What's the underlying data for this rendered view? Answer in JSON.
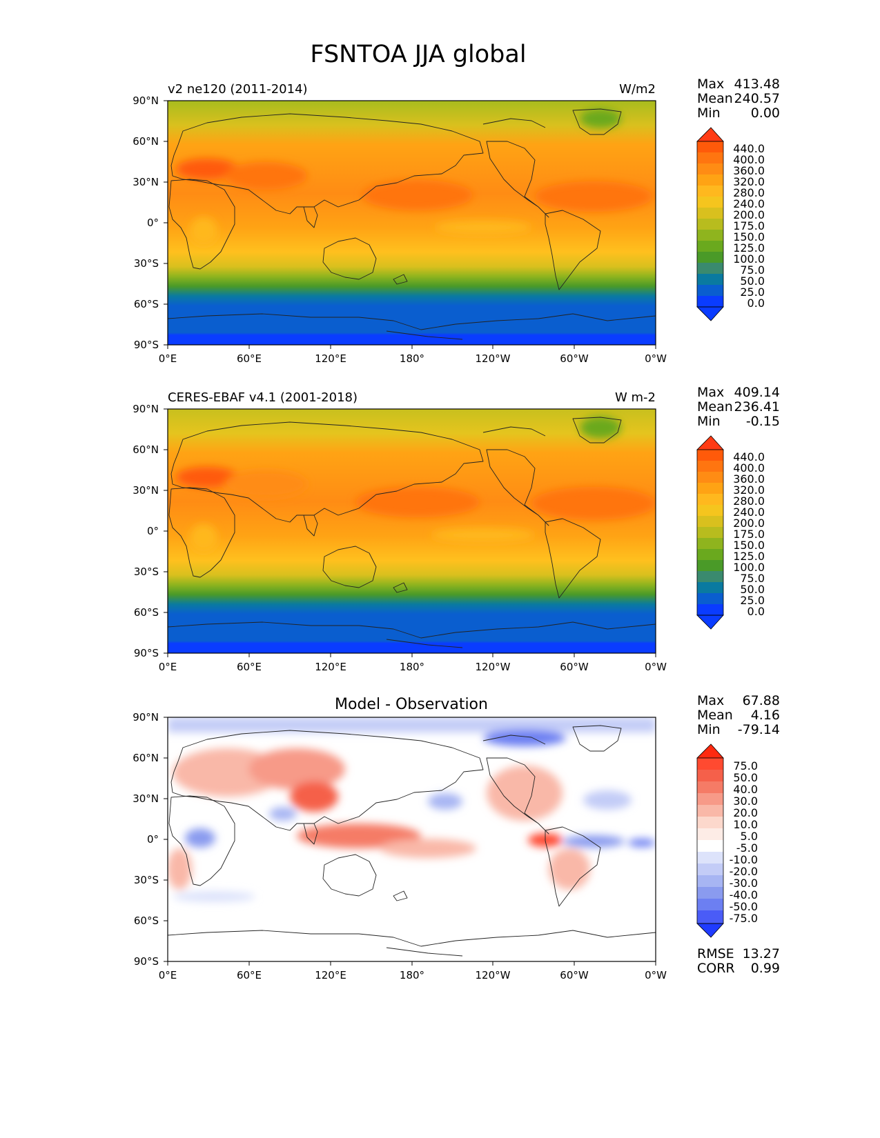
{
  "title": "FSNTOA JJA global",
  "lat_ticks": [
    "90°N",
    "60°N",
    "30°N",
    "0°",
    "30°S",
    "60°S",
    "90°S"
  ],
  "lon_ticks": [
    "0°E",
    "60°E",
    "120°E",
    "180°",
    "120°W",
    "60°W",
    "0°W"
  ],
  "panels": [
    {
      "left_title": "v2 ne120 (2011-2014)",
      "right_title": "W/m2",
      "center_title": "",
      "stats": [
        [
          "Max",
          "413.48"
        ],
        [
          "Mean",
          "240.57"
        ],
        [
          "Min",
          "0.00"
        ]
      ],
      "colorbar": {
        "labels": [
          "440.0",
          "400.0",
          "360.0",
          "320.0",
          "280.0",
          "240.0",
          "200.0",
          "175.0",
          "150.0",
          "125.0",
          "100.0",
          "75.0",
          "50.0",
          "25.0",
          "0.0"
        ],
        "colors": [
          "#ff3b14",
          "#ff5a0a",
          "#ff7510",
          "#ff8c14",
          "#ffa314",
          "#ffb81e",
          "#f5c51e",
          "#d9c01e",
          "#b8bc1e",
          "#8fb41e",
          "#6aa91e",
          "#4a9a28",
          "#3a8a6e",
          "#0a7aa0",
          "#0a5ecf",
          "#0a3cff"
        ]
      },
      "extra_stats": []
    },
    {
      "left_title": "CERES-EBAF v4.1 (2001-2018)",
      "right_title": "W m-2",
      "center_title": "",
      "stats": [
        [
          "Max",
          "409.14"
        ],
        [
          "Mean",
          "236.41"
        ],
        [
          "Min",
          "-0.15"
        ]
      ],
      "colorbar": {
        "labels": [
          "440.0",
          "400.0",
          "360.0",
          "320.0",
          "280.0",
          "240.0",
          "200.0",
          "175.0",
          "150.0",
          "125.0",
          "100.0",
          "75.0",
          "50.0",
          "25.0",
          "0.0"
        ],
        "colors": [
          "#ff3b14",
          "#ff5a0a",
          "#ff7510",
          "#ff8c14",
          "#ffa314",
          "#ffb81e",
          "#f5c51e",
          "#d9c01e",
          "#b8bc1e",
          "#8fb41e",
          "#6aa91e",
          "#4a9a28",
          "#3a8a6e",
          "#0a7aa0",
          "#0a5ecf",
          "#0a3cff"
        ]
      },
      "extra_stats": []
    },
    {
      "left_title": "",
      "right_title": "",
      "center_title": "Model - Observation",
      "stats": [
        [
          "Max",
          "67.88"
        ],
        [
          "Mean",
          "4.16"
        ],
        [
          "Min",
          "-79.14"
        ]
      ],
      "colorbar": {
        "labels": [
          "75.0",
          "50.0",
          "40.0",
          "30.0",
          "20.0",
          "10.0",
          "5.0",
          "-5.0",
          "-10.0",
          "-20.0",
          "-30.0",
          "-40.0",
          "-50.0",
          "-75.0"
        ],
        "colors": [
          "#ff2a10",
          "#ff4a30",
          "#f5604a",
          "#f57b66",
          "#f79a88",
          "#f9b8a8",
          "#fcd8cc",
          "#ffffff",
          "#dde3fb",
          "#c3ccf7",
          "#a7b5f3",
          "#8a9bef",
          "#6c7ff2",
          "#4a5cf7",
          "#1f3bff"
        ]
      },
      "extra_stats": [
        [
          "RMSE",
          "13.27"
        ],
        [
          "CORR",
          "0.99"
        ]
      ]
    }
  ]
}
